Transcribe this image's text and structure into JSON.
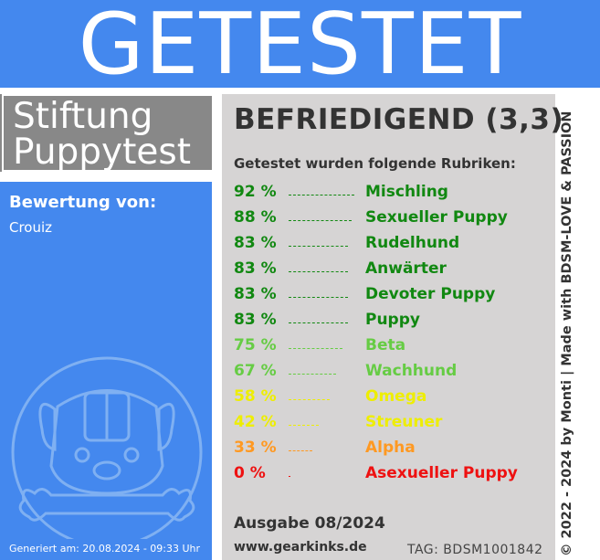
{
  "banner": {
    "title": "GETESTET"
  },
  "brand": {
    "line1": "Stiftung",
    "line2": "Puppytest"
  },
  "left": {
    "rated_by_label": "Bewertung von:",
    "rater": "Crouiz",
    "generated": "Generiert am: 20.08.2024 - 09:33 Uhr"
  },
  "mascot": {
    "icon": "dog-face-bone-icon"
  },
  "result": {
    "grade": "BEFRIEDIGEND (3,3)",
    "subheading": "Getestet wurden folgende Rubriken:",
    "rows": [
      {
        "pct": "92 %",
        "value": 92,
        "category": "Mischling",
        "color": "#118811"
      },
      {
        "pct": "88 %",
        "value": 88,
        "category": "Sexueller Puppy",
        "color": "#118811"
      },
      {
        "pct": "83 %",
        "value": 83,
        "category": "Rudelhund",
        "color": "#118811"
      },
      {
        "pct": "83 %",
        "value": 83,
        "category": "Anwärter",
        "color": "#118811"
      },
      {
        "pct": "83 %",
        "value": 83,
        "category": "Devoter Puppy",
        "color": "#118811"
      },
      {
        "pct": "83 %",
        "value": 83,
        "category": "Puppy",
        "color": "#118811"
      },
      {
        "pct": "75 %",
        "value": 75,
        "category": "Beta",
        "color": "#66cc44"
      },
      {
        "pct": "67 %",
        "value": 67,
        "category": "Wachhund",
        "color": "#66cc44"
      },
      {
        "pct": "58 %",
        "value": 58,
        "category": "Omega",
        "color": "#eeee00"
      },
      {
        "pct": "42 %",
        "value": 42,
        "category": "Streuner",
        "color": "#eeee00"
      },
      {
        "pct": "33 %",
        "value": 33,
        "category": "Alpha",
        "color": "#ff9922"
      },
      {
        "pct": "0 %",
        "value": 0,
        "category": "Asexueller Puppy",
        "color": "#ee1111"
      }
    ],
    "issue": "Ausgabe 08/2024",
    "url": "www.gearkinks.de",
    "tag": "TAG: BDSM1001842"
  },
  "side": {
    "credit": "© 2022 - 2024 by Monti | Made with BDSM-LOVE & PASSION"
  }
}
